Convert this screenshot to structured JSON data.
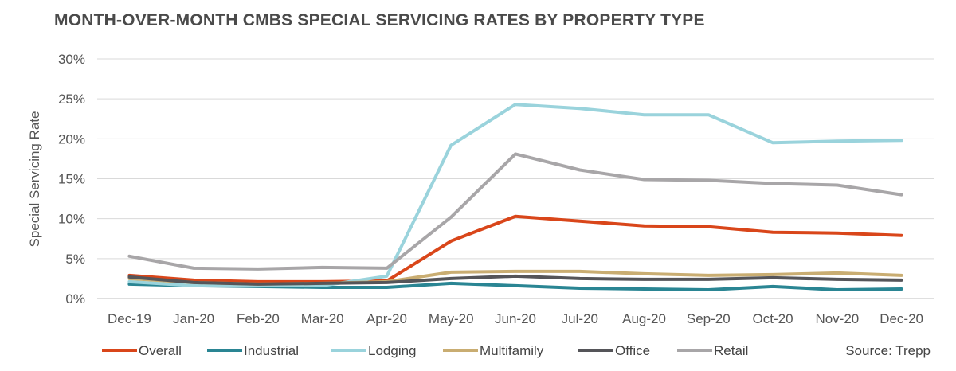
{
  "title": "MONTH-OVER-MONTH CMBS SPECIAL SERVICING RATES BY PROPERTY TYPE",
  "source": "Source: Trepp",
  "chart_data": {
    "type": "line",
    "ylabel": "Special Servicing Rate",
    "ylim": [
      0,
      30
    ],
    "yticks": [
      "0%",
      "5%",
      "10%",
      "15%",
      "20%",
      "25%",
      "30%"
    ],
    "ytick_values": [
      0,
      5,
      10,
      15,
      20,
      25,
      30
    ],
    "grid": "horizontal",
    "legend": "bottom",
    "categories": [
      "Dec-19",
      "Jan-20",
      "Feb-20",
      "Mar-20",
      "Apr-20",
      "May-20",
      "Jun-20",
      "Jul-20",
      "Aug-20",
      "Sep-20",
      "Oct-20",
      "Nov-20",
      "Dec-20"
    ],
    "series": [
      {
        "name": "Overall",
        "color": "#d9461a",
        "values": [
          2.9,
          2.3,
          2.1,
          2.1,
          2.2,
          7.2,
          10.3,
          9.7,
          9.1,
          9.0,
          8.3,
          8.2,
          7.9
        ]
      },
      {
        "name": "Industrial",
        "color": "#2a8593",
        "values": [
          1.8,
          1.6,
          1.5,
          1.4,
          1.4,
          1.9,
          1.6,
          1.3,
          1.2,
          1.1,
          1.5,
          1.1,
          1.2
        ]
      },
      {
        "name": "Lodging",
        "color": "#9ad3dc",
        "values": [
          2.1,
          1.6,
          1.6,
          1.6,
          2.8,
          19.2,
          24.3,
          23.8,
          23.0,
          23.0,
          19.5,
          19.7,
          19.8
        ]
      },
      {
        "name": "Multifamily",
        "color": "#c9ad72",
        "values": [
          2.5,
          2.0,
          1.8,
          1.9,
          2.1,
          3.3,
          3.4,
          3.4,
          3.1,
          2.9,
          3.0,
          3.2,
          2.9
        ]
      },
      {
        "name": "Office",
        "color": "#555559",
        "values": [
          2.7,
          2.0,
          1.8,
          1.9,
          2.0,
          2.5,
          2.8,
          2.5,
          2.4,
          2.4,
          2.6,
          2.4,
          2.3
        ]
      },
      {
        "name": "Retail",
        "color": "#a8a6a8",
        "values": [
          5.3,
          3.8,
          3.7,
          3.9,
          3.8,
          10.2,
          18.1,
          16.1,
          14.9,
          14.8,
          14.4,
          14.2,
          13.0
        ]
      }
    ]
  }
}
